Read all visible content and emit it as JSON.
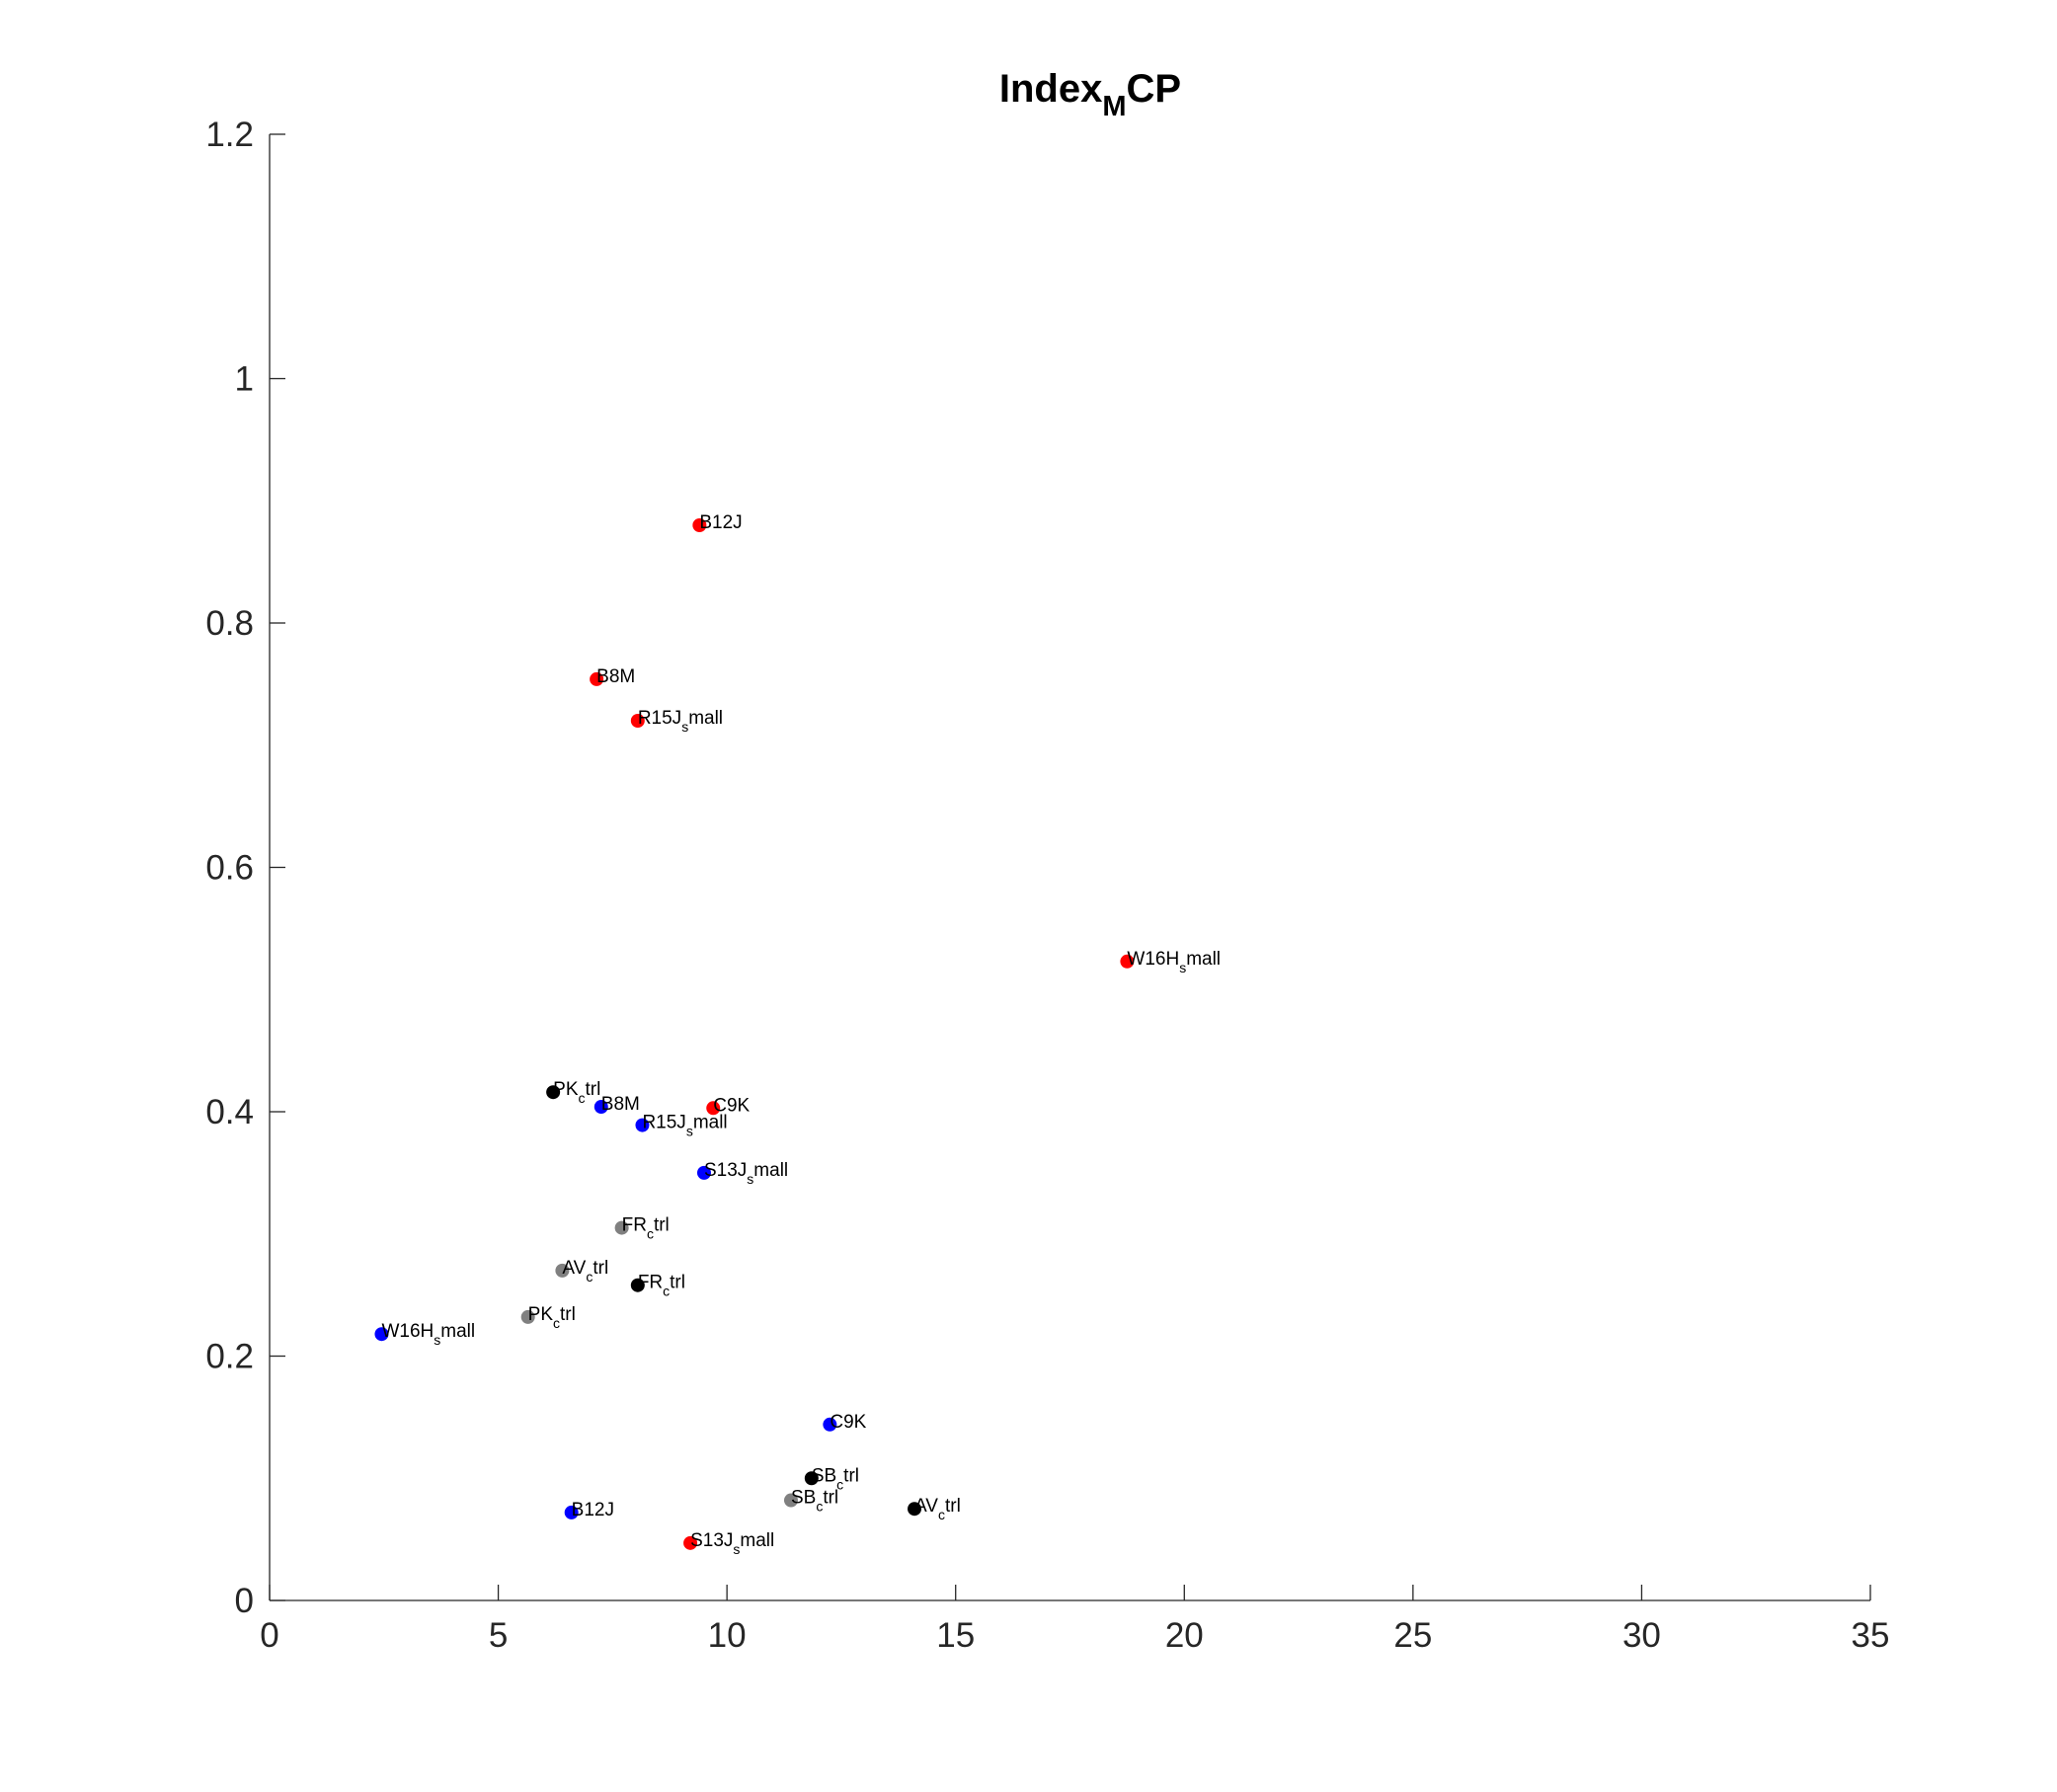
{
  "chart_data": {
    "type": "scatter",
    "title": "IndexMCP",
    "title_parts": {
      "main": "Index",
      "sub": "M",
      "rest": "CP"
    },
    "xlim": [
      0,
      35
    ],
    "ylim": [
      0,
      1.2
    ],
    "x_ticks": [
      "0",
      "5",
      "10",
      "15",
      "20",
      "25",
      "30",
      "35"
    ],
    "y_ticks": [
      "0",
      "0.2",
      "0.4",
      "0.6",
      "0.8",
      "1",
      "1.2"
    ],
    "grid": false,
    "colors": {
      "red": "#ff0000",
      "blue": "#0000ff",
      "black": "#000000",
      "gray": "#808080"
    },
    "points": [
      {
        "x": 9.4,
        "y": 0.88,
        "color": "red",
        "label": [
          "B12J"
        ]
      },
      {
        "x": 7.15,
        "y": 0.754,
        "color": "red",
        "label": [
          "B8M"
        ]
      },
      {
        "x": 8.05,
        "y": 0.72,
        "color": "red",
        "label": [
          "R15J",
          "s",
          "mall"
        ]
      },
      {
        "x": 18.75,
        "y": 0.523,
        "color": "red",
        "label": [
          "W16H",
          "s",
          "mall"
        ]
      },
      {
        "x": 9.7,
        "y": 0.403,
        "color": "red",
        "label": [
          "C9K"
        ]
      },
      {
        "x": 9.2,
        "y": 0.047,
        "color": "red",
        "label": [
          "S13J",
          "s",
          "mall"
        ]
      },
      {
        "x": 7.25,
        "y": 0.404,
        "color": "blue",
        "label": [
          "B8M"
        ]
      },
      {
        "x": 8.15,
        "y": 0.389,
        "color": "blue",
        "label": [
          "R15J",
          "s",
          "mall"
        ]
      },
      {
        "x": 9.5,
        "y": 0.35,
        "color": "blue",
        "label": [
          "S13J",
          "s",
          "mall"
        ]
      },
      {
        "x": 2.45,
        "y": 0.218,
        "color": "blue",
        "label": [
          "W16H",
          "s",
          "mall"
        ]
      },
      {
        "x": 12.25,
        "y": 0.144,
        "color": "blue",
        "label": [
          "C9K"
        ]
      },
      {
        "x": 6.6,
        "y": 0.072,
        "color": "blue",
        "label": [
          "B12J"
        ]
      },
      {
        "x": 6.2,
        "y": 0.416,
        "color": "black",
        "label": [
          "PK",
          "c",
          "trl"
        ]
      },
      {
        "x": 8.05,
        "y": 0.258,
        "color": "black",
        "label": [
          "FR",
          "c",
          "trl"
        ]
      },
      {
        "x": 11.85,
        "y": 0.1,
        "color": "black",
        "label": [
          "SB",
          "c",
          "trl"
        ]
      },
      {
        "x": 14.1,
        "y": 0.075,
        "color": "black",
        "label": [
          "AV",
          "c",
          "trl"
        ]
      },
      {
        "x": 7.7,
        "y": 0.305,
        "color": "gray",
        "label": [
          "FR",
          "c",
          "trl"
        ]
      },
      {
        "x": 6.4,
        "y": 0.27,
        "color": "gray",
        "label": [
          "AV",
          "c",
          "trl"
        ]
      },
      {
        "x": 5.65,
        "y": 0.232,
        "color": "gray",
        "label": [
          "PK",
          "c",
          "trl"
        ]
      },
      {
        "x": 11.4,
        "y": 0.082,
        "color": "gray",
        "label": [
          "SB",
          "c",
          "trl"
        ]
      }
    ]
  }
}
